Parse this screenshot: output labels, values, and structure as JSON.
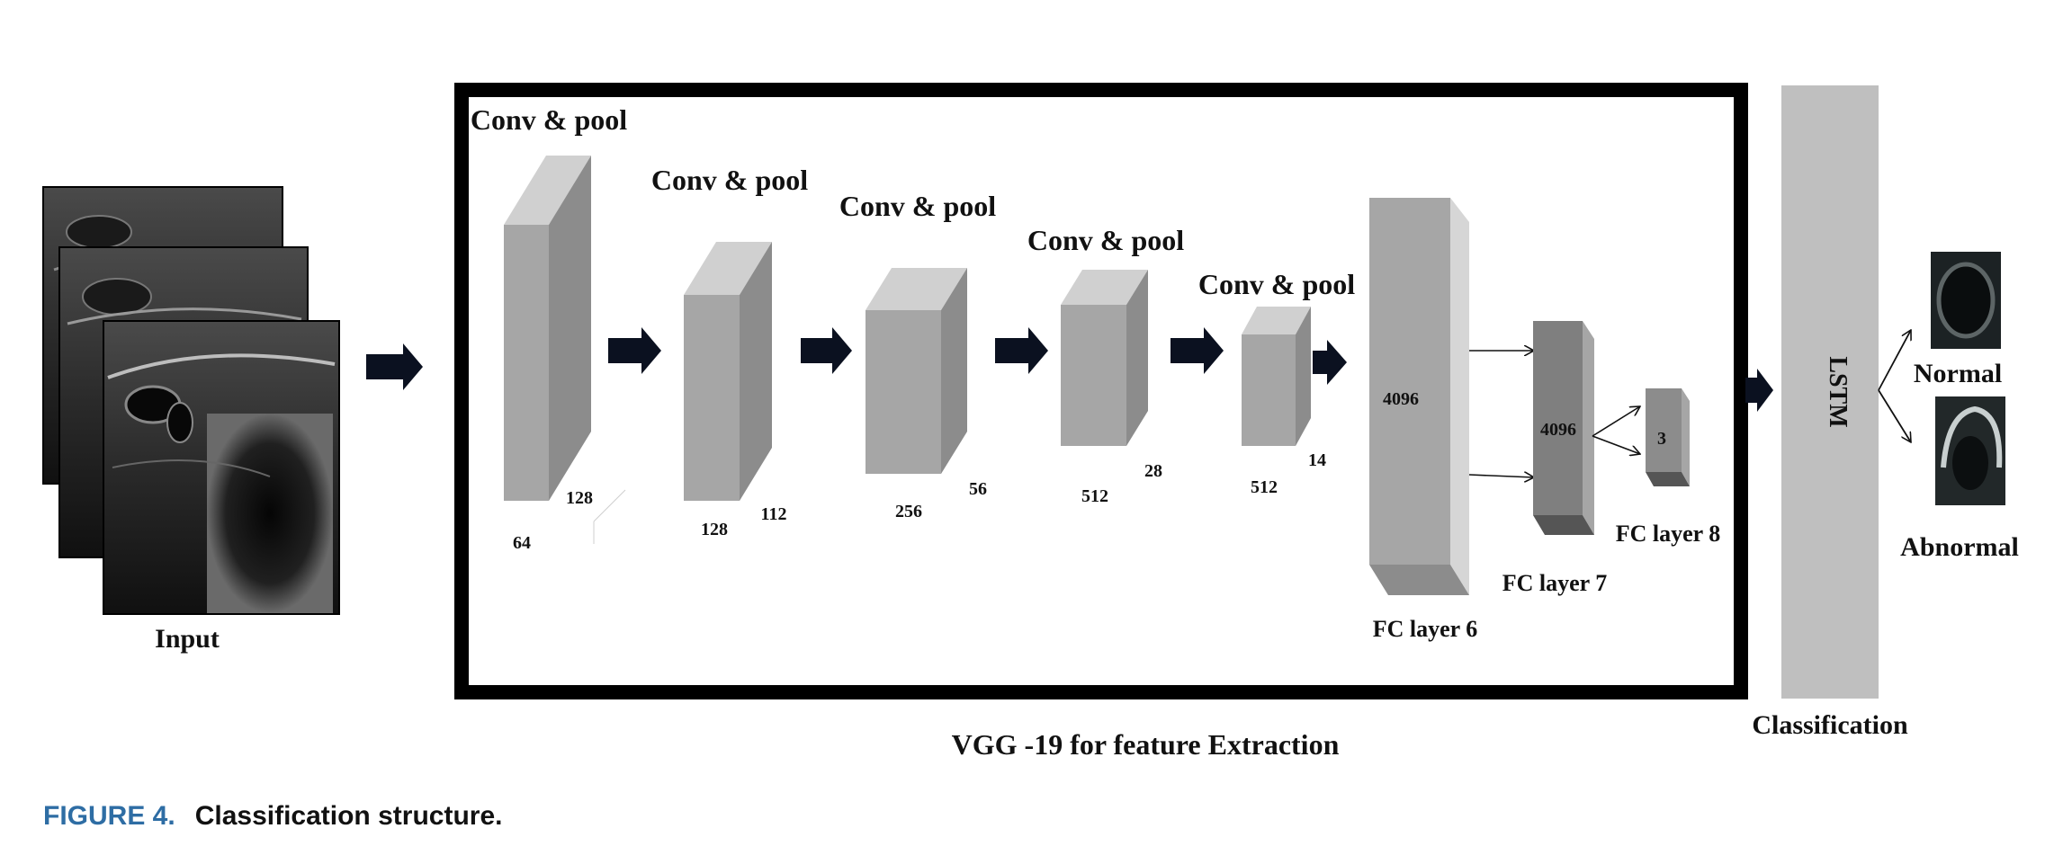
{
  "input": {
    "label": "Input"
  },
  "vgg": {
    "caption": "VGG -19 for feature Extraction",
    "stages": [
      {
        "title": "Conv & pool",
        "width_label": "64",
        "depth_label": "128"
      },
      {
        "title": "Conv & pool",
        "width_label": "128",
        "depth_label": "112"
      },
      {
        "title": "Conv & pool",
        "width_label": "256",
        "depth_label": "56"
      },
      {
        "title": "Conv & pool",
        "width_label": "512",
        "depth_label": "28"
      },
      {
        "title": "Conv & pool",
        "width_label": "512",
        "depth_label": "14"
      }
    ],
    "fc_layers": [
      {
        "name": "FC layer 6",
        "units": "4096"
      },
      {
        "name": "FC layer 7",
        "units": "4096"
      },
      {
        "name": "FC layer 8",
        "units": "3"
      }
    ]
  },
  "lstm": {
    "label": "LSTM",
    "caption": "Classification"
  },
  "outputs": [
    {
      "label": "Normal"
    },
    {
      "label": "Abnormal"
    }
  ],
  "figure": {
    "number": "FIGURE 4.",
    "caption": "Classification structure."
  },
  "colors": {
    "box_front": "#a6a6a6",
    "box_top": "#d0d0d0",
    "box_side": "#8c8c8c",
    "arrow": "#0b1120",
    "lstm": "#bfbfbf",
    "figure_label": "#2e6da4"
  }
}
